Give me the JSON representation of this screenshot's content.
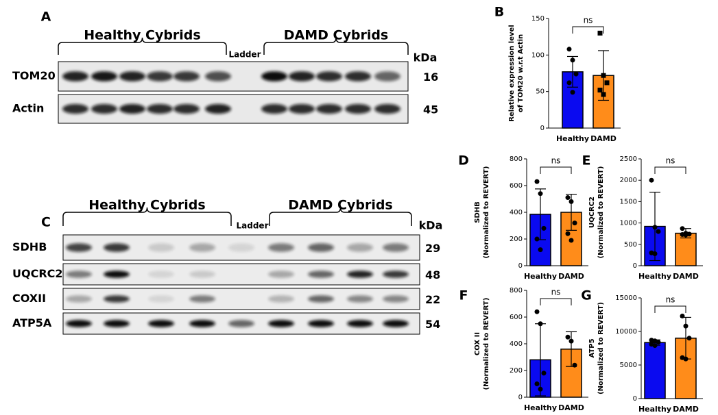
{
  "blots": [
    {
      "panel": "A",
      "groups": [
        "Healthy Cybrids",
        "DAMD Cybrids"
      ],
      "ladder": "Ladder",
      "unit": "kDa",
      "rows": [
        {
          "label": "TOM20",
          "kda": 16
        },
        {
          "label": "Actin",
          "kda": 45
        }
      ]
    },
    {
      "panel": "C",
      "groups": [
        "Healthy Cybrids",
        "DAMD Cybrids"
      ],
      "ladder": "Ladder",
      "unit": "kDa",
      "rows": [
        {
          "label": "SDHB",
          "kda": 29
        },
        {
          "label": "UQCRC2",
          "kda": 48
        },
        {
          "label": "COXII",
          "kda": 22
        },
        {
          "label": "ATP5A",
          "kda": 54
        }
      ]
    }
  ],
  "chart_data": [
    {
      "type": "bar",
      "panel": "B",
      "ylabel": [
        "Relative expression level",
        "of TOM20 w.r.t Actin"
      ],
      "categories": [
        "Healthy",
        "DAMD"
      ],
      "values": [
        77,
        72
      ],
      "errors": [
        21,
        34
      ],
      "points": [
        [
          108,
          93,
          74,
          62,
          49
        ],
        [
          130,
          72,
          62,
          52,
          46
        ]
      ],
      "markers": [
        "circle",
        "square"
      ],
      "colors": [
        "#0a0af0",
        "#ff8c1a"
      ],
      "annotation": "ns",
      "ylim": [
        0,
        150
      ],
      "yticks": [
        0,
        50,
        100,
        150
      ]
    },
    {
      "type": "bar",
      "panel": "D",
      "ylabel": [
        "SDHB",
        "(Normalized to REVERT)"
      ],
      "categories": [
        "Healthy",
        "DAMD"
      ],
      "values": [
        385,
        400
      ],
      "errors": [
        190,
        135
      ],
      "points": [
        [
          630,
          540,
          280,
          200,
          120
        ],
        [
          510,
          480,
          320,
          240,
          190
        ]
      ],
      "markers": [
        "circle",
        "circle"
      ],
      "colors": [
        "#0a0af0",
        "#ff8c1a"
      ],
      "annotation": "ns",
      "ylim": [
        0,
        800
      ],
      "yticks": [
        0,
        200,
        400,
        600,
        800
      ]
    },
    {
      "type": "bar",
      "panel": "E",
      "ylabel": [
        "UQCRC2",
        "(Normalized to REVERT)"
      ],
      "categories": [
        "Healthy",
        "DAMD"
      ],
      "values": [
        920,
        760
      ],
      "errors": [
        800,
        110
      ],
      "points": [
        [
          2000,
          900,
          800,
          300,
          280
        ],
        [
          870,
          760,
          740,
          730,
          720
        ]
      ],
      "markers": [
        "circle",
        "circle"
      ],
      "colors": [
        "#0a0af0",
        "#ff8c1a"
      ],
      "annotation": "ns",
      "ylim": [
        0,
        2500
      ],
      "yticks": [
        0,
        500,
        1000,
        1500,
        2000,
        2500
      ]
    },
    {
      "type": "bar",
      "panel": "F",
      "ylabel": [
        "COX II",
        "(Normalized to REVERT)"
      ],
      "categories": [
        "Healthy",
        "DAMD"
      ],
      "values": [
        280,
        360
      ],
      "errors": [
        270,
        130
      ],
      "points": [
        [
          640,
          550,
          180,
          100,
          60
        ],
        [
          450,
          420,
          240
        ]
      ],
      "markers": [
        "circle",
        "circle"
      ],
      "colors": [
        "#0a0af0",
        "#ff8c1a"
      ],
      "annotation": "ns",
      "ylim": [
        0,
        800
      ],
      "yticks": [
        0,
        200,
        400,
        600,
        800
      ]
    },
    {
      "type": "bar",
      "panel": "G",
      "ylabel": [
        "ATP5",
        "(Normalized to REVERT)"
      ],
      "categories": [
        "Healthy",
        "DAMD"
      ],
      "values": [
        8350,
        9000
      ],
      "errors": [
        400,
        3100
      ],
      "points": [
        [
          8700,
          8600,
          8400,
          8100,
          7900
        ],
        [
          12300,
          10800,
          9000,
          6100,
          5900
        ]
      ],
      "markers": [
        "circle",
        "circle"
      ],
      "colors": [
        "#0a0af0",
        "#ff8c1a"
      ],
      "annotation": "ns",
      "ylim": [
        0,
        15000
      ],
      "yticks": [
        0,
        5000,
        10000,
        15000
      ]
    }
  ]
}
